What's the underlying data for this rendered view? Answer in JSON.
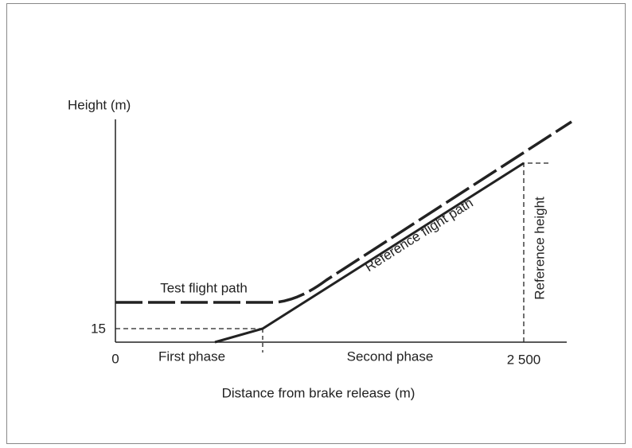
{
  "axes": {
    "y_label": "Height (m)",
    "x_label": "Distance from brake release (m)",
    "y_tick": "15",
    "x_origin": "0",
    "x_tick": "2 500"
  },
  "phases": [
    "First phase",
    "Second phase"
  ],
  "paths": {
    "test": "Test flight path",
    "reference": "Reference flight path",
    "reference_height": "Reference height"
  }
}
